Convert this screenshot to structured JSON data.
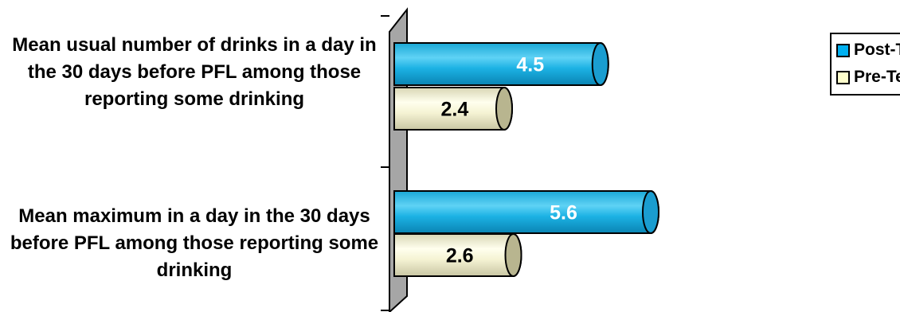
{
  "chart_data": {
    "type": "bar",
    "orientation": "horizontal",
    "style": "3d-cylinder",
    "categories": [
      "Mean usual number of drinks in a day in the 30 days before PFL among those reporting some drinking",
      "Mean maximum in a day in the 30 days before PFL among those reporting some drinking"
    ],
    "series": [
      {
        "name": "Post-Test",
        "values": [
          4.5,
          5.6
        ],
        "color": "#00B0F0"
      },
      {
        "name": "Pre-Test",
        "values": [
          2.4,
          2.6
        ],
        "color": "#FFFFCC"
      }
    ],
    "xlim": [
      0,
      6.5
    ],
    "grid": false,
    "legend": "top-right",
    "data_labels": true
  }
}
